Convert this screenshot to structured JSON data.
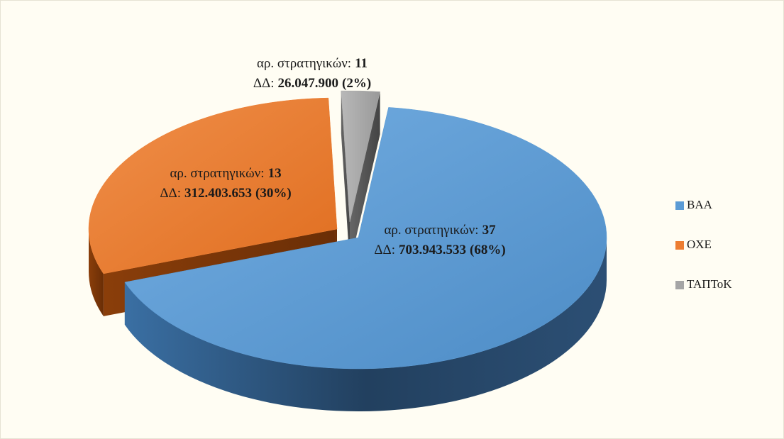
{
  "chart_data": {
    "type": "pie3d",
    "categories": [
      "ΒΑΑ",
      "ΟΧΕ",
      "ΤΑΠΤοΚ"
    ],
    "values": [
      703943533,
      312403653,
      26047900
    ],
    "value_labels": [
      "703.943.533",
      "312.403.653",
      "26.047.900"
    ],
    "counts": [
      37,
      13,
      11
    ],
    "shares": [
      68,
      30,
      2
    ],
    "share_labels": [
      "(68%)",
      "(30%)",
      "(2%)"
    ],
    "count_label": "αρ. στρατηγικών:",
    "value_label_prefix": "ΔΔ:",
    "colors": [
      "#5b9bd5",
      "#ed7d31",
      "#a5a5a5"
    ],
    "legend": "right"
  }
}
